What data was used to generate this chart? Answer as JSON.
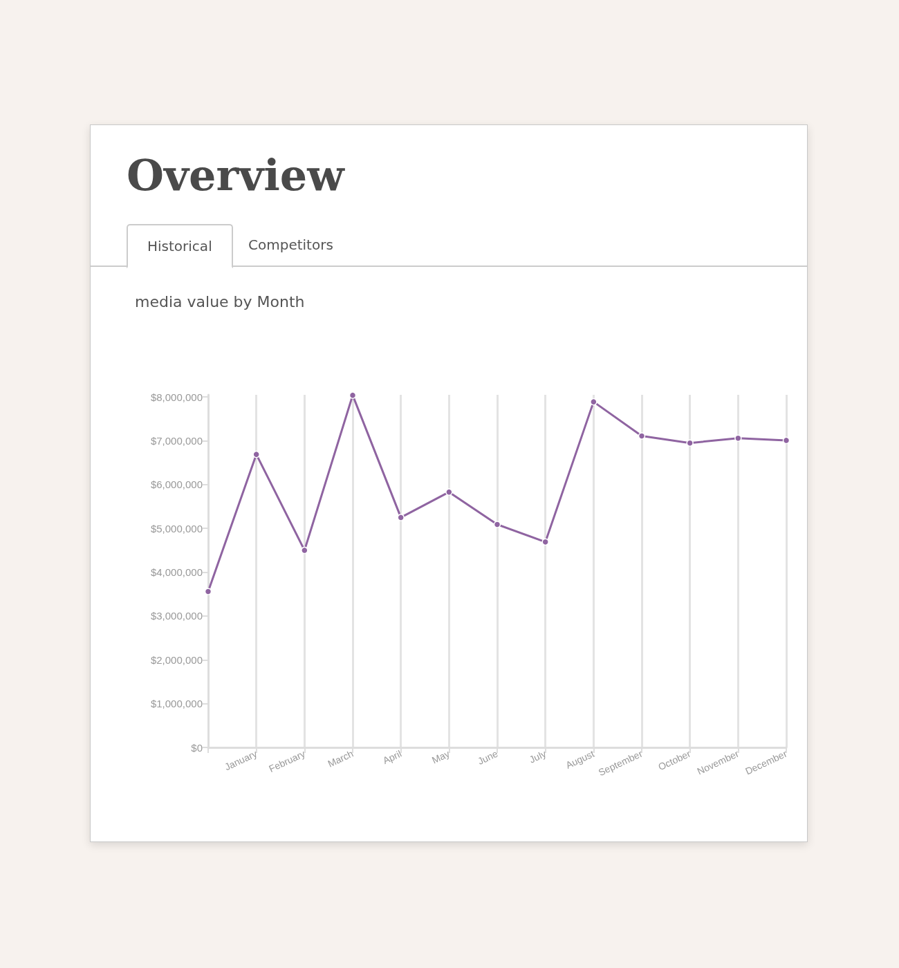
{
  "chart_data": {
    "type": "line",
    "title": "Overview",
    "subtitle": "media value by Month",
    "annotations": [
      "Historical",
      "Competitors"
    ],
    "categories": [
      null,
      "January",
      "February",
      "March",
      "April",
      "May",
      "June",
      "July",
      "August",
      "September",
      "October",
      "November",
      "December"
    ],
    "series": [
      {
        "color": "#8f64a1",
        "values": [
          3560000,
          6690000,
          4500000,
          8040000,
          5250000,
          5830000,
          5090000,
          4690000,
          7890000,
          7110000,
          6950000,
          7060000,
          7010000
        ]
      }
    ],
    "ylim": [
      0,
      8050000
    ],
    "yticks": [
      {
        "value": 0,
        "label": "$0"
      },
      {
        "value": 1000000,
        "label": "$1,000,000"
      },
      {
        "value": 2000000,
        "label": "$2,000,000"
      },
      {
        "value": 3000000,
        "label": "$3,000,000"
      },
      {
        "value": 4000000,
        "label": "$4,000,000"
      },
      {
        "value": 5000000,
        "label": "$5,000,000"
      },
      {
        "value": 6000000,
        "label": "$6,000,000"
      },
      {
        "value": 7000000,
        "label": "$7,000,000"
      },
      {
        "value": 8000000,
        "label": "$8,000,000"
      }
    ],
    "grid": "x",
    "marker": "circle",
    "line_style": "solid"
  }
}
